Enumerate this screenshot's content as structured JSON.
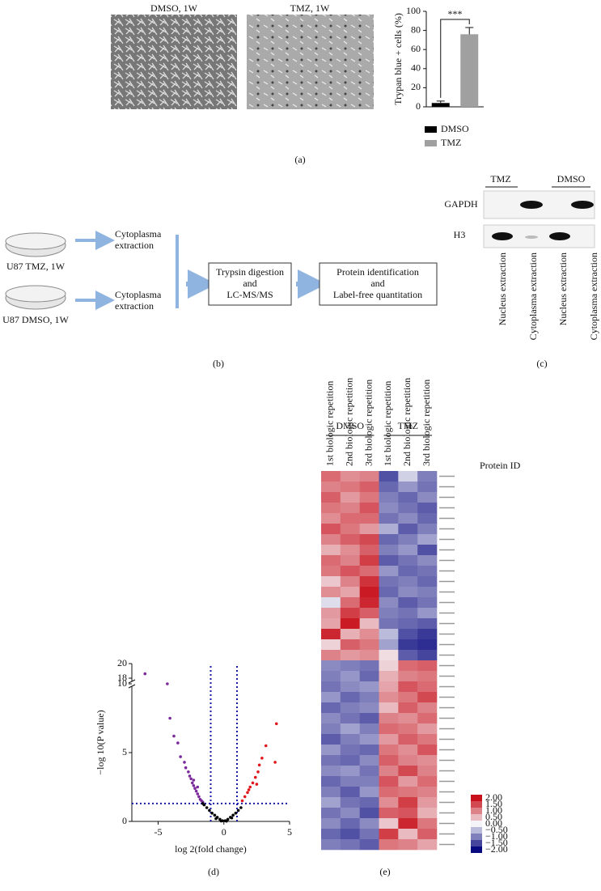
{
  "chart_data": [
    {
      "type": "bar",
      "categories": [
        "DMSO",
        "TMZ"
      ],
      "values": [
        4,
        76
      ],
      "errors": [
        2,
        7
      ],
      "colors": [
        "#000000",
        "#a0a0a0"
      ],
      "ylim": [
        0,
        100
      ],
      "yticks": [
        0,
        20,
        40,
        60,
        80,
        100
      ],
      "y_label": "Trypan blue + cells (%)",
      "annotation": "***"
    },
    {
      "type": "scatter",
      "x_label": "log 2(fold change)",
      "y_label": "−log 10(P value)",
      "xlim": [
        -7,
        5
      ],
      "ylim": [
        0,
        20
      ],
      "y_break": [
        10,
        18
      ],
      "xticks": [
        -5,
        0,
        5
      ],
      "yticks": [
        0,
        5,
        10,
        18,
        20
      ],
      "thresholds": {
        "x": [
          -1,
          1
        ],
        "y": 1.3,
        "color": "#1a1aa8"
      },
      "series": [
        {
          "color": "#7b2a9b",
          "x": [
            -6,
            -4.3,
            -4.1,
            -3.8,
            -3.5,
            -3.3,
            -3,
            -2.9,
            -2.7,
            -2.6,
            -2.5,
            -2.4,
            -2.3,
            -2.2,
            -2.1,
            -2,
            -1.9,
            -1.8,
            -1.7,
            -1.6,
            -2.3,
            -2
          ],
          "values": [
            18.6,
            10.3,
            7.5,
            6.2,
            5.7,
            4.7,
            4.3,
            3.9,
            3.6,
            3.3,
            3.1,
            2.8,
            2.6,
            2.4,
            2.2,
            2,
            1.8,
            1.6,
            1.5,
            1.4,
            3,
            2.5
          ]
        },
        {
          "color": "#000000",
          "x": [
            -1.5,
            -1.3,
            -1.1,
            -0.9,
            -0.7,
            -0.5,
            -0.3,
            -0.1,
            0.1,
            0.3,
            0.5,
            0.7,
            0.9,
            1.1,
            1.3,
            -1.6,
            -0.6,
            0.6,
            0.2,
            -0.2
          ],
          "values": [
            1.2,
            1,
            0.8,
            0.6,
            0.45,
            0.3,
            0.15,
            0.05,
            0.05,
            0.15,
            0.3,
            0.45,
            0.6,
            0.8,
            1,
            1.3,
            0.2,
            0.25,
            0.02,
            0.03
          ]
        },
        {
          "color": "#e0181c",
          "x": [
            4,
            3.9,
            3.2,
            2.9,
            2.7,
            2.6,
            2.4,
            2.2,
            2,
            1.8,
            1.6,
            1.4,
            2.5,
            1.9
          ],
          "values": [
            7.1,
            4.3,
            5.5,
            4.6,
            4.1,
            3.6,
            3.2,
            2.8,
            2.5,
            2.1,
            1.8,
            1.5,
            2.7,
            2.3
          ]
        }
      ]
    },
    {
      "type": "heatmap",
      "groups": [
        "DMSO",
        "TMZ"
      ],
      "columns": [
        "1st biologic repetition",
        "2nd biologic repetition",
        "3rd biologic repetition",
        "1st biologic repetition",
        "2nd biologic repetition",
        "3rd biologic repetition"
      ],
      "row_label": "Protein ID",
      "values": [
        [
          1.2,
          0.9,
          1.0,
          -1.4,
          -0.3,
          -1.0
        ],
        [
          1.0,
          1.1,
          1.3,
          -1.2,
          -0.8,
          -1.1
        ],
        [
          1.3,
          0.8,
          1.1,
          -1.0,
          -1.2,
          -0.9
        ],
        [
          1.1,
          1.0,
          1.4,
          -0.9,
          -1.1,
          -1.3
        ],
        [
          0.9,
          1.2,
          1.2,
          -1.1,
          -0.9,
          -1.2
        ],
        [
          1.4,
          1.1,
          0.8,
          -0.6,
          -1.3,
          -1.0
        ],
        [
          1.0,
          1.3,
          1.5,
          -1.2,
          -1.0,
          -0.7
        ],
        [
          0.6,
          0.9,
          1.3,
          -1.0,
          -0.8,
          -1.4
        ],
        [
          1.2,
          1.0,
          1.6,
          -1.3,
          -1.1,
          -0.9
        ],
        [
          1.1,
          1.4,
          1.2,
          -0.8,
          -1.2,
          -1.1
        ],
        [
          0.4,
          1.0,
          1.7,
          -1.1,
          -1.0,
          -1.2
        ],
        [
          0.9,
          0.7,
          1.9,
          -1.2,
          -0.9,
          -1.0
        ],
        [
          -0.2,
          1.2,
          1.8,
          -0.9,
          -1.3,
          -1.1
        ],
        [
          0.8,
          1.6,
          1.3,
          -1.0,
          -1.1,
          -0.8
        ],
        [
          0.7,
          1.9,
          0.5,
          -1.1,
          -1.2,
          -1.3
        ],
        [
          1.8,
          0.6,
          0.9,
          -0.5,
          -1.4,
          -1.6
        ],
        [
          0.3,
          1.3,
          1.1,
          -0.7,
          -1.6,
          -1.7
        ],
        [
          1.0,
          0.8,
          0.9,
          0.2,
          -1.3,
          -1.5
        ],
        [
          -0.9,
          -1.0,
          -1.1,
          0.3,
          1.2,
          1.3
        ],
        [
          -1.0,
          -0.8,
          -1.2,
          0.6,
          1.0,
          1.1
        ],
        [
          -1.1,
          -0.9,
          -0.8,
          0.7,
          1.4,
          1.2
        ],
        [
          -0.8,
          -1.2,
          -1.0,
          0.9,
          1.1,
          1.5
        ],
        [
          -1.2,
          -1.0,
          -0.9,
          0.5,
          1.3,
          1.0
        ],
        [
          -0.9,
          -1.1,
          -1.3,
          1.0,
          0.9,
          1.2
        ],
        [
          -1.0,
          -0.7,
          -1.0,
          1.2,
          1.1,
          0.8
        ],
        [
          -1.3,
          -1.0,
          -0.8,
          0.8,
          1.3,
          1.1
        ],
        [
          -0.8,
          -1.1,
          -1.2,
          1.1,
          0.9,
          1.4
        ],
        [
          -1.1,
          -1.2,
          -0.9,
          1.3,
          1.0,
          0.9
        ],
        [
          -0.9,
          -0.8,
          -1.1,
          1.0,
          1.5,
          1.0
        ],
        [
          -1.2,
          -1.0,
          -1.0,
          1.4,
          0.8,
          1.2
        ],
        [
          -1.0,
          -1.3,
          -0.8,
          1.2,
          1.1,
          1.0
        ],
        [
          -0.7,
          -1.1,
          -1.2,
          0.9,
          1.6,
          0.8
        ],
        [
          -1.1,
          -0.9,
          -1.4,
          1.3,
          1.4,
          0.6
        ],
        [
          -0.9,
          -1.2,
          -0.9,
          0.4,
          1.8,
          1.1
        ],
        [
          -1.2,
          -1.4,
          -1.1,
          1.6,
          0.5,
          1.3
        ],
        [
          -1.0,
          -1.1,
          -1.3,
          1.1,
          1.0,
          0.7
        ]
      ],
      "colorscale": {
        "range": [
          -2,
          2
        ],
        "colors": [
          "#0a0a80",
          "#f4f4f8",
          "#c8101a"
        ],
        "ticks": [
          {
            "value": 2,
            "label": "2.00"
          },
          {
            "value": 1.5,
            "label": "1.50"
          },
          {
            "value": 1,
            "label": "1.00"
          },
          {
            "value": 0.5,
            "label": "0.50"
          },
          {
            "value": 0,
            "label": "0.00"
          },
          {
            "value": -0.5,
            "label": "−0.50"
          },
          {
            "value": -1,
            "label": "−1.00"
          },
          {
            "value": -1.5,
            "label": "−1.50"
          },
          {
            "value": -2,
            "label": "−2.00"
          }
        ]
      }
    }
  ],
  "panels": {
    "a": {
      "label": "(a)",
      "images": [
        "DMSO, 1W",
        "TMZ, 1W"
      ]
    },
    "b": {
      "label": "(b)",
      "samples": [
        "U87 TMZ, 1W",
        "U87 DMSO, 1W"
      ],
      "extraction": [
        [
          "Cytoplasma",
          "extraction"
        ],
        [
          "Cytoplasma",
          "extraction"
        ]
      ],
      "steps": [
        [
          "Trypsin digestion",
          "and",
          "LC-MS/MS"
        ],
        [
          "Protein identification",
          "and",
          "Label-free quantitation"
        ]
      ]
    },
    "c": {
      "label": "(c)",
      "groups": [
        "TMZ",
        "DMSO"
      ],
      "proteins": [
        "GAPDH",
        "H3"
      ],
      "lanes": [
        "Nucleus extraction",
        "Cytoplasma extraction",
        "Nucleus extraction",
        "Cytoplasma extraction"
      ]
    },
    "d": {
      "label": "(d)"
    },
    "e": {
      "label": "(e)"
    }
  }
}
